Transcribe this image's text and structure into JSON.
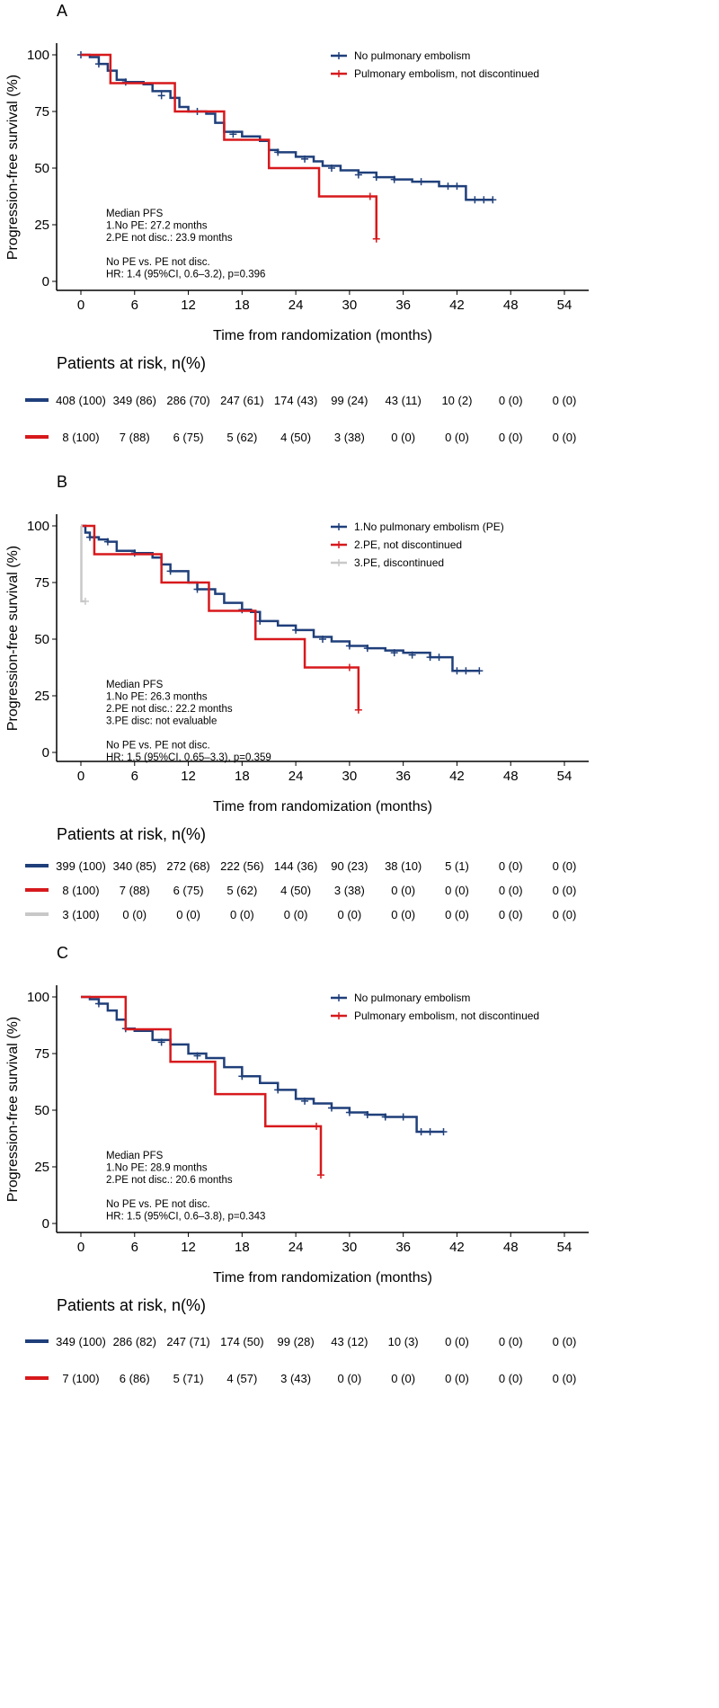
{
  "chart_data": [
    {
      "type": "line",
      "panel_label": "A",
      "xlabel": "Time from randomization (months)",
      "ylabel": "Progression-free survival (%)",
      "xticks": [
        0,
        6,
        12,
        18,
        24,
        30,
        36,
        42,
        48,
        54
      ],
      "yticks": [
        0,
        25,
        50,
        75,
        100
      ],
      "xlim": [
        -4,
        57
      ],
      "ylim": [
        -4,
        105
      ],
      "legend_position": "top-right",
      "series": [
        {
          "name": "No pulmonary embolism",
          "color": "#1f3f7a",
          "points": [
            [
              0,
              100
            ],
            [
              1,
              99
            ],
            [
              2,
              96
            ],
            [
              3,
              93
            ],
            [
              4,
              89
            ],
            [
              5,
              88
            ],
            [
              7,
              87
            ],
            [
              8,
              84
            ],
            [
              10,
              81
            ],
            [
              11,
              77
            ],
            [
              12,
              75
            ],
            [
              14,
              74
            ],
            [
              15,
              70
            ],
            [
              16,
              66
            ],
            [
              18,
              64
            ],
            [
              20,
              62
            ],
            [
              21,
              58
            ],
            [
              22,
              57
            ],
            [
              24,
              55
            ],
            [
              26,
              53
            ],
            [
              27,
              51
            ],
            [
              29,
              49
            ],
            [
              31,
              48
            ],
            [
              33,
              46
            ],
            [
              35,
              45
            ],
            [
              37,
              44
            ],
            [
              40,
              42
            ],
            [
              43,
              42
            ],
            [
              43,
              36
            ],
            [
              46,
              36
            ]
          ],
          "censor": [
            [
              0,
              100
            ],
            [
              2,
              96
            ],
            [
              5,
              88
            ],
            [
              9,
              82
            ],
            [
              13,
              75
            ],
            [
              17,
              65
            ],
            [
              22,
              57
            ],
            [
              25,
              54
            ],
            [
              28,
              50
            ],
            [
              31,
              47
            ],
            [
              33,
              46
            ],
            [
              35,
              45
            ],
            [
              38,
              44
            ],
            [
              41,
              42
            ],
            [
              42,
              42
            ],
            [
              44,
              36
            ],
            [
              45,
              36
            ],
            [
              46,
              36
            ]
          ]
        },
        {
          "name": "Pulmonary embolism, not discontinued",
          "color": "#d7191c",
          "steps": [
            [
              0,
              100
            ],
            [
              3.3,
              87.5
            ],
            [
              10.5,
              75
            ],
            [
              16,
              62.5
            ],
            [
              21,
              50
            ],
            [
              26.6,
              37.5
            ],
            [
              33,
              18.75
            ]
          ],
          "end": 33,
          "censor": [
            [
              32.3,
              37.5
            ],
            [
              33,
              18.75
            ]
          ]
        }
      ],
      "annotation": [
        "Median PFS",
        " 1.No PE:  27.2 months",
        " 2.PE not disc.:  23.9 months",
        "",
        "No PE vs. PE not disc.",
        " HR: 1.4 (95%CI, 0.6–3.2), p=0.396"
      ],
      "risk_title": "Patients at risk, n(%)",
      "risk_table": [
        [
          "408 (100)",
          "349 (86)",
          "286 (70)",
          "247 (61)",
          "174 (43)",
          "99 (24)",
          "43 (11)",
          "10 (2)",
          "0 (0)",
          "0 (0)"
        ],
        [
          "8 (100)",
          "7 (88)",
          "6 (75)",
          "5 (62)",
          "4 (50)",
          "3 (38)",
          "0 (0)",
          "0 (0)",
          "0 (0)",
          "0 (0)"
        ]
      ]
    },
    {
      "type": "line",
      "panel_label": "B",
      "xlabel": "Time from randomization (months)",
      "ylabel": "Progression-free survival (%)",
      "xticks": [
        0,
        6,
        12,
        18,
        24,
        30,
        36,
        42,
        48,
        54
      ],
      "yticks": [
        0,
        25,
        50,
        75,
        100
      ],
      "xlim": [
        -4,
        57
      ],
      "ylim": [
        -4,
        105
      ],
      "legend_position": "top-right",
      "series": [
        {
          "name": "1.No pulmonary embolism (PE)",
          "color": "#1f3f7a",
          "points": [
            [
              0,
              100
            ],
            [
              0.5,
              97
            ],
            [
              1,
              95
            ],
            [
              2,
              94
            ],
            [
              3,
              93
            ],
            [
              4,
              89
            ],
            [
              6,
              88
            ],
            [
              8,
              86
            ],
            [
              9,
              83
            ],
            [
              10,
              80
            ],
            [
              12,
              75
            ],
            [
              13,
              72
            ],
            [
              15,
              70
            ],
            [
              16,
              66
            ],
            [
              18,
              63
            ],
            [
              19,
              62
            ],
            [
              20,
              58
            ],
            [
              22,
              56
            ],
            [
              24,
              54
            ],
            [
              26,
              51
            ],
            [
              28,
              49
            ],
            [
              30,
              47
            ],
            [
              32,
              46
            ],
            [
              34,
              45
            ],
            [
              36,
              44
            ],
            [
              39,
              42
            ],
            [
              41.5,
              42
            ],
            [
              41.5,
              36
            ],
            [
              44.5,
              36
            ]
          ],
          "censor": [
            [
              1,
              95
            ],
            [
              3,
              93
            ],
            [
              6,
              88
            ],
            [
              10,
              80
            ],
            [
              13,
              72
            ],
            [
              18,
              63
            ],
            [
              20,
              58
            ],
            [
              24,
              54
            ],
            [
              27,
              50
            ],
            [
              30,
              47
            ],
            [
              32,
              46
            ],
            [
              35,
              44
            ],
            [
              37,
              43
            ],
            [
              39,
              42
            ],
            [
              40,
              42
            ],
            [
              42,
              36
            ],
            [
              43,
              36
            ],
            [
              44.5,
              36
            ]
          ]
        },
        {
          "name": "2.PE, not discontinued",
          "color": "#d7191c",
          "steps": [
            [
              0,
              100
            ],
            [
              1.5,
              87.5
            ],
            [
              9,
              75
            ],
            [
              14.3,
              62.5
            ],
            [
              19.5,
              50
            ],
            [
              25,
              37.5
            ],
            [
              31,
              18.75
            ]
          ],
          "end": 31,
          "censor": [
            [
              30,
              37.5
            ],
            [
              31,
              18.75
            ]
          ]
        },
        {
          "name": "3.PE, discontinued",
          "color": "#c8c8c8",
          "steps": [
            [
              0,
              100
            ],
            [
              0.05,
              66.7
            ]
          ],
          "end": 0.5,
          "censor": [
            [
              0.5,
              66.7
            ]
          ]
        }
      ],
      "annotation": [
        "Median PFS",
        " 1.No PE:  26.3 months",
        " 2.PE not disc.:  22.2 months",
        " 3.PE disc:  not evaluable",
        "",
        "No PE vs. PE not disc.",
        " HR: 1.5 (95%CI, 0.65–3.3), p=0.359"
      ],
      "risk_title": "Patients at risk, n(%)",
      "risk_table": [
        [
          "399 (100)",
          "340 (85)",
          "272 (68)",
          "222 (56)",
          "144 (36)",
          "90 (23)",
          "38 (10)",
          "5 (1)",
          "0 (0)",
          "0 (0)"
        ],
        [
          "8 (100)",
          "7 (88)",
          "6 (75)",
          "5 (62)",
          "4 (50)",
          "3 (38)",
          "0 (0)",
          "0 (0)",
          "0 (0)",
          "0 (0)"
        ],
        [
          "3 (100)",
          "0 (0)",
          "0 (0)",
          "0 (0)",
          "0 (0)",
          "0 (0)",
          "0 (0)",
          "0 (0)",
          "0 (0)",
          "0 (0)"
        ]
      ]
    },
    {
      "type": "line",
      "panel_label": "C",
      "xlabel": "Time from randomization (months)",
      "ylabel": "Progression-free survival (%)",
      "xticks": [
        0,
        6,
        12,
        18,
        24,
        30,
        36,
        42,
        48,
        54
      ],
      "yticks": [
        0,
        25,
        50,
        75,
        100
      ],
      "xlim": [
        -4,
        57
      ],
      "ylim": [
        -4,
        105
      ],
      "legend_position": "top-right",
      "series": [
        {
          "name": "No pulmonary embolism",
          "color": "#1f3f7a",
          "points": [
            [
              0,
              100
            ],
            [
              1,
              99
            ],
            [
              2,
              97
            ],
            [
              3,
              94
            ],
            [
              4,
              90
            ],
            [
              5,
              86
            ],
            [
              6,
              85
            ],
            [
              8,
              81
            ],
            [
              10,
              79
            ],
            [
              12,
              75
            ],
            [
              14,
              73
            ],
            [
              16,
              69
            ],
            [
              18,
              65
            ],
            [
              20,
              62
            ],
            [
              22,
              59
            ],
            [
              24,
              55
            ],
            [
              26,
              53
            ],
            [
              28,
              51
            ],
            [
              30,
              49
            ],
            [
              32,
              48
            ],
            [
              34,
              47
            ],
            [
              37.5,
              47
            ],
            [
              37.5,
              40.5
            ],
            [
              40.5,
              40.5
            ]
          ],
          "censor": [
            [
              2,
              97
            ],
            [
              5,
              86
            ],
            [
              9,
              80
            ],
            [
              13,
              74
            ],
            [
              18,
              65
            ],
            [
              22,
              59
            ],
            [
              25,
              54
            ],
            [
              28,
              51
            ],
            [
              30,
              49
            ],
            [
              32,
              48
            ],
            [
              34,
              47
            ],
            [
              36,
              47
            ],
            [
              38,
              40.5
            ],
            [
              39,
              40.5
            ],
            [
              40.5,
              40.5
            ]
          ]
        },
        {
          "name": "Pulmonary embolism, not discontinued",
          "color": "#d7191c",
          "steps": [
            [
              0,
              100
            ],
            [
              5,
              85.7
            ],
            [
              10,
              71.4
            ],
            [
              15,
              57.1
            ],
            [
              20.6,
              42.9
            ],
            [
              26.8,
              21.4
            ]
          ],
          "end": 26.8,
          "censor": [
            [
              26.3,
              42.9
            ],
            [
              26.8,
              21.4
            ]
          ]
        }
      ],
      "annotation": [
        "Median PFS",
        " 1.No PE:  28.9 months",
        " 2.PE not disc.:  20.6 months",
        "",
        "No PE vs. PE not disc.",
        " HR: 1.5 (95%CI, 0.6–3.8), p=0.343"
      ],
      "risk_title": "Patients at risk, n(%)",
      "risk_table": [
        [
          "349 (100)",
          "286 (82)",
          "247 (71)",
          "174 (50)",
          "99 (28)",
          "43 (12)",
          "10 (3)",
          "0 (0)",
          "0 (0)",
          "0 (0)"
        ],
        [
          "7 (100)",
          "6 (86)",
          "5 (71)",
          "4 (57)",
          "3 (43)",
          "0 (0)",
          "0 (0)",
          "0 (0)",
          "0 (0)",
          "0 (0)"
        ]
      ]
    }
  ]
}
